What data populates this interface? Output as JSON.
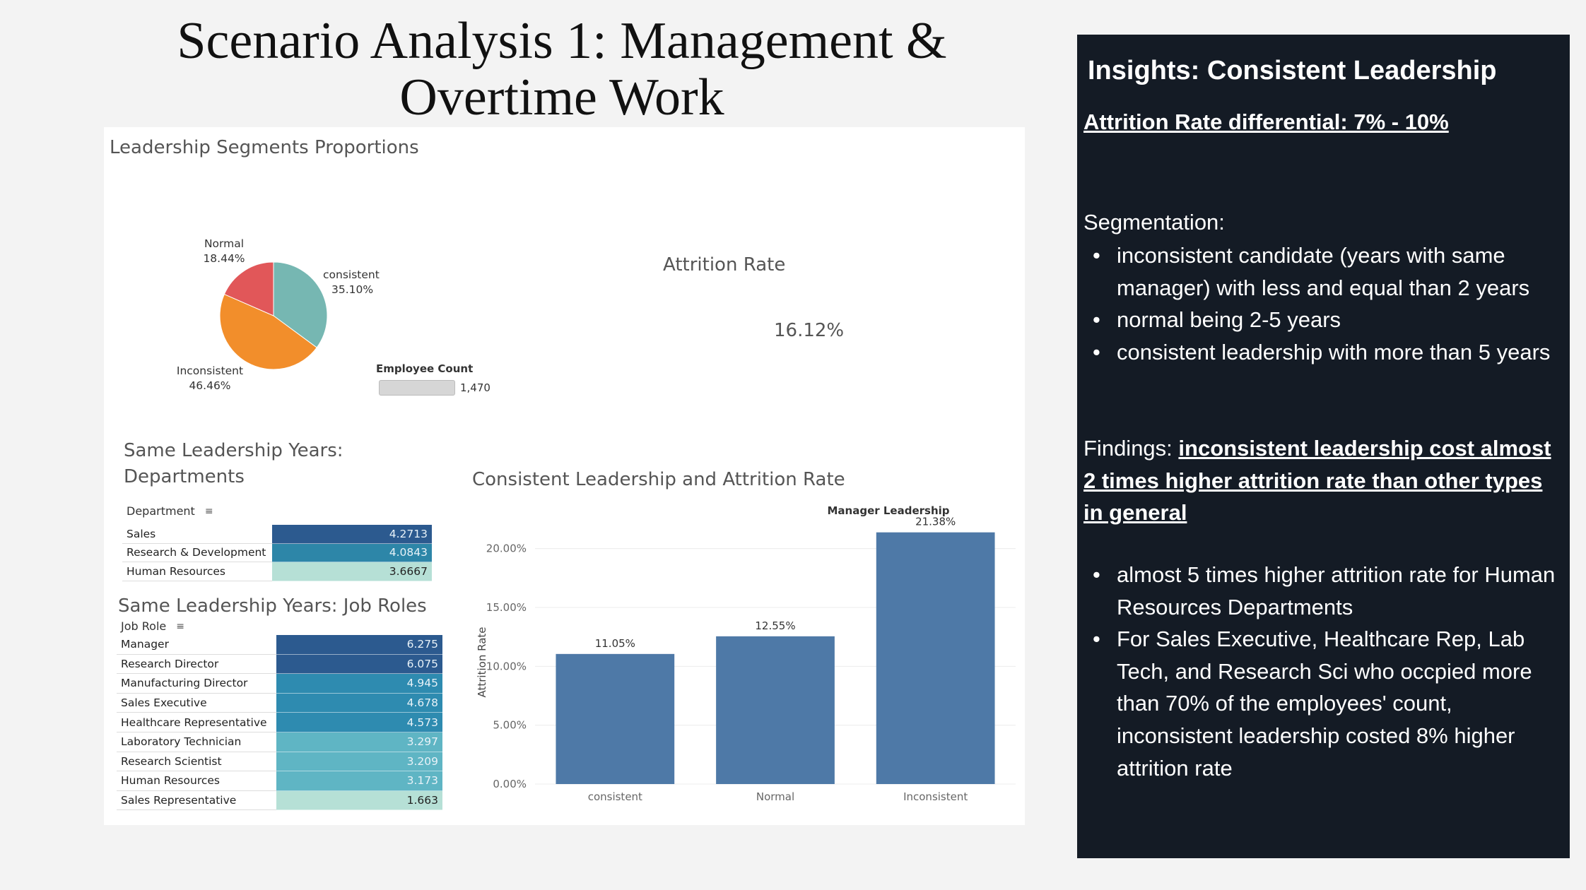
{
  "slide": {
    "title_line1": "Scenario Analysis 1: Management &",
    "title_line2": "Overtime Work"
  },
  "dashboard": {
    "pie_title": "Leadership Segments Proportions",
    "attrition_label": "Attrition Rate",
    "attrition_value": "16.12%",
    "employee_count_label": "Employee Count",
    "employee_count_value": "1,470",
    "dept_title_line1": "Same Leadership Years:",
    "dept_title_line2": "Departments",
    "dept_header": "Department",
    "role_title": "Same Leadership Years: Job Roles",
    "role_header": "Job Role",
    "bar_title": "Consistent Leadership and Attrition Rate"
  },
  "chart_data": [
    {
      "type": "pie",
      "title": "Leadership Segments Proportions",
      "slices": [
        {
          "label": "consistent",
          "value": 35.1,
          "display": "35.10%",
          "color": "#76b7b2"
        },
        {
          "label": "Inconsistent",
          "value": 46.46,
          "display": "46.46%",
          "color": "#f28e2b"
        },
        {
          "label": "Normal",
          "value": 18.44,
          "display": "18.44%",
          "color": "#e15759"
        }
      ]
    },
    {
      "type": "table",
      "title": "Same Leadership Years: Departments",
      "header": "Department",
      "rows": [
        {
          "label": "Sales",
          "value": 4.2713,
          "display": "4.2713",
          "color": "#2c5a8f"
        },
        {
          "label": "Research & Development",
          "value": 4.0843,
          "display": "4.0843",
          "color": "#2d86a8"
        },
        {
          "label": "Human Resources",
          "value": 3.6667,
          "display": "3.6667",
          "color": "#b6e0d6"
        }
      ]
    },
    {
      "type": "table",
      "title": "Same Leadership Years: Job Roles",
      "header": "Job Role",
      "rows": [
        {
          "label": "Manager",
          "value": 6.275,
          "display": "6.275",
          "color": "#2c5a8f"
        },
        {
          "label": "Research Director",
          "value": 6.075,
          "display": "6.075",
          "color": "#2c5a8f"
        },
        {
          "label": "Manufacturing Director",
          "value": 4.945,
          "display": "4.945",
          "color": "#2e8bb0"
        },
        {
          "label": "Sales Executive",
          "value": 4.678,
          "display": "4.678",
          "color": "#2e8bb0"
        },
        {
          "label": "Healthcare Representative",
          "value": 4.573,
          "display": "4.573",
          "color": "#2e8bb0"
        },
        {
          "label": "Laboratory Technician",
          "value": 3.297,
          "display": "3.297",
          "color": "#5fb5c4"
        },
        {
          "label": "Research Scientist",
          "value": 3.209,
          "display": "3.209",
          "color": "#5fb5c4"
        },
        {
          "label": "Human Resources",
          "value": 3.173,
          "display": "3.173",
          "color": "#5fb5c4"
        },
        {
          "label": "Sales Representative",
          "value": 1.663,
          "display": "1.663",
          "color": "#b6e0d6"
        }
      ]
    },
    {
      "type": "bar",
      "title": "Consistent Leadership and Attrition Rate",
      "subtitle": "Manager Leadership",
      "ylabel": "Attrition Rate",
      "categories": [
        "consistent",
        "Normal",
        "Inconsistent"
      ],
      "values": [
        11.05,
        12.55,
        21.38
      ],
      "value_labels": [
        "11.05%",
        "12.55%",
        "21.38%"
      ],
      "ylim": [
        0,
        22.5
      ],
      "yticks": [
        0,
        5,
        10,
        15,
        20
      ],
      "ytick_labels": [
        "0.00%",
        "5.00%",
        "10.00%",
        "15.00%",
        "20.00%"
      ],
      "bar_color": "#4e79a7",
      "grid": true
    }
  ],
  "insights": {
    "title": "Insights: Consistent Leadership",
    "differential": "Attrition Rate differential: 7% - 10%",
    "segmentation_label": "Segmentation:",
    "segmentation_items": [
      "inconsistent candidate (years with same manager) with less and equal than 2 years",
      "normal being 2-5 years",
      "consistent leadership with more than 5 years"
    ],
    "findings_label": "Findings:",
    "findings_text": "inconsistent leadership cost almost 2 times higher attrition rate than other types in general",
    "finding_items": [
      "almost 5 times higher attrition rate for Human Resources Departments",
      "For Sales Executive, Healthcare Rep, Lab Tech, and Research Sci who occpied more than 70% of the employees' count, inconsistent leadership costed 8% higher attrition rate"
    ]
  }
}
